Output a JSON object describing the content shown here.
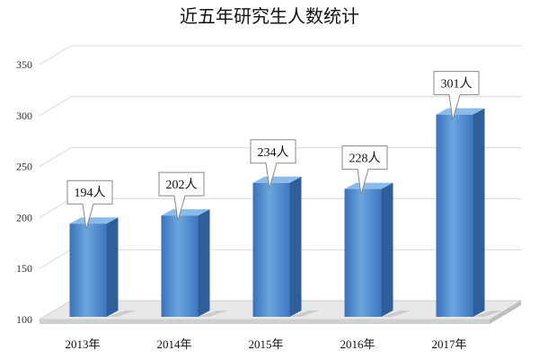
{
  "chart_data": {
    "type": "bar",
    "title": "近五年研究生人数统计",
    "categories": [
      "2013年",
      "2014年",
      "2015年",
      "2016年",
      "2017年"
    ],
    "values": [
      194,
      202,
      234,
      228,
      301
    ],
    "data_labels": [
      "194人",
      "202人",
      "234人",
      "228人",
      "301人"
    ],
    "y_ticks": [
      "100",
      "150",
      "200",
      "250",
      "300",
      "350"
    ],
    "ylim": [
      100,
      350
    ],
    "grid": true,
    "legend": "none",
    "style": "3d-column",
    "colors": {
      "bar_front_top": "#5b9bd5",
      "bar_front_bottom": "#3f78c0",
      "bar_side": "#2f5f9a",
      "bar_top": "#8bbbe8",
      "grid": "#d9d9d9"
    }
  }
}
